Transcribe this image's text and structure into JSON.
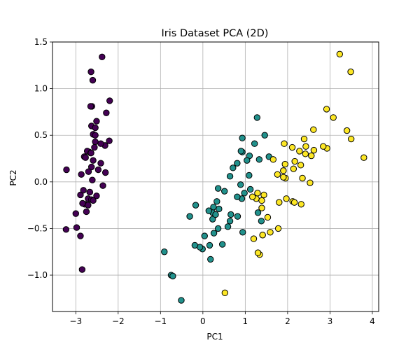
{
  "chart_data": {
    "type": "scatter",
    "title": "Iris Dataset PCA (2D)",
    "xlabel": "PC1",
    "ylabel": "PC2",
    "xlim": [
      -3.55,
      4.15
    ],
    "ylim": [
      -1.39,
      1.5
    ],
    "xticks": [
      -3,
      -2,
      -1,
      0,
      1,
      2,
      3,
      4
    ],
    "xtick_labels": [
      "−3",
      "−2",
      "−1",
      "0",
      "1",
      "2",
      "3",
      "4"
    ],
    "yticks": [
      -1.0,
      -0.5,
      0.0,
      0.5,
      1.0,
      1.5
    ],
    "ytick_labels": [
      "−1.0",
      "−0.5",
      "0.0",
      "0.5",
      "1.0",
      "1.5"
    ],
    "grid": true,
    "legend": false,
    "colors": [
      "#440154",
      "#21918c",
      "#fde725"
    ],
    "marker_edge_color": "#000000",
    "series": [
      {
        "points": [
          [
            -2.68,
            0.32
          ],
          [
            -2.71,
            -0.18
          ],
          [
            -2.89,
            -0.14
          ],
          [
            -2.75,
            -0.32
          ],
          [
            -2.73,
            0.33
          ],
          [
            -2.28,
            0.74
          ],
          [
            -2.82,
            -0.09
          ],
          [
            -2.63,
            0.16
          ],
          [
            -2.89,
            -0.58
          ],
          [
            -2.67,
            -0.11
          ],
          [
            -2.51,
            0.65
          ],
          [
            -2.61,
            0.02
          ],
          [
            -2.79,
            -0.24
          ],
          [
            -3.23,
            -0.51
          ],
          [
            -2.64,
            1.18
          ],
          [
            -2.38,
            1.34
          ],
          [
            -2.62,
            0.81
          ],
          [
            -2.65,
            0.31
          ],
          [
            -2.2,
            0.87
          ],
          [
            -2.59,
            0.51
          ],
          [
            -2.31,
            0.39
          ],
          [
            -2.54,
            0.43
          ],
          [
            -3.22,
            0.13
          ],
          [
            -2.3,
            0.1
          ],
          [
            -2.36,
            -0.04
          ],
          [
            -2.51,
            -0.15
          ],
          [
            -2.47,
            0.13
          ],
          [
            -2.56,
            0.37
          ],
          [
            -2.64,
            0.31
          ],
          [
            -2.63,
            -0.19
          ],
          [
            -2.59,
            -0.2
          ],
          [
            -2.41,
            0.41
          ],
          [
            -2.65,
            0.81
          ],
          [
            -2.6,
            1.09
          ],
          [
            -2.67,
            -0.11
          ],
          [
            -2.87,
            0.08
          ],
          [
            -2.63,
            0.6
          ],
          [
            -2.8,
            0.27
          ],
          [
            -2.98,
            -0.49
          ],
          [
            -2.59,
            0.23
          ],
          [
            -2.77,
            0.26
          ],
          [
            -2.85,
            -0.94
          ],
          [
            -3,
            -0.34
          ],
          [
            -2.41,
            0.2
          ],
          [
            -2.21,
            0.44
          ],
          [
            -2.71,
            -0.25
          ],
          [
            -2.54,
            0.5
          ],
          [
            -2.84,
            -0.23
          ],
          [
            -2.54,
            0.58
          ],
          [
            -2.7,
            0.11
          ]
        ]
      },
      {
        "points": [
          [
            1.28,
            0.69
          ],
          [
            0.93,
            0.32
          ],
          [
            1.46,
            0.5
          ],
          [
            0.18,
            -0.83
          ],
          [
            1.09,
            0.07
          ],
          [
            0.64,
            -0.42
          ],
          [
            1.1,
            0.28
          ],
          [
            -0.75,
            -1
          ],
          [
            1.04,
            0.23
          ],
          [
            -0.01,
            -0.72
          ],
          [
            -0.51,
            -1.27
          ],
          [
            0.51,
            -0.1
          ],
          [
            0.26,
            -0.55
          ],
          [
            0.98,
            -0.12
          ],
          [
            -0.17,
            -0.25
          ],
          [
            0.93,
            0.47
          ],
          [
            0.66,
            -0.35
          ],
          [
            0.23,
            -0.33
          ],
          [
            0.94,
            -0.54
          ],
          [
            0.04,
            -0.58
          ],
          [
            1.12,
            -0.08
          ],
          [
            0.36,
            -0.07
          ],
          [
            1.3,
            -0.33
          ],
          [
            0.92,
            -0.18
          ],
          [
            0.71,
            0.15
          ],
          [
            0.9,
            0.33
          ],
          [
            1.33,
            0.24
          ],
          [
            1.56,
            0.27
          ],
          [
            0.81,
            -0.16
          ],
          [
            -0.31,
            -0.37
          ],
          [
            -0.07,
            -0.7
          ],
          [
            -0.19,
            -0.68
          ],
          [
            0.14,
            -0.31
          ],
          [
            1.38,
            -0.42
          ],
          [
            0.59,
            -0.48
          ],
          [
            0.81,
            0.2
          ],
          [
            1.22,
            0.41
          ],
          [
            0.82,
            -0.37
          ],
          [
            0.25,
            -0.27
          ],
          [
            0.16,
            -0.68
          ],
          [
            0.46,
            -0.67
          ],
          [
            0.89,
            -0.03
          ],
          [
            0.23,
            -0.4
          ],
          [
            -0.71,
            -1.01
          ],
          [
            0.36,
            -0.5
          ],
          [
            0.33,
            -0.21
          ],
          [
            0.38,
            -0.29
          ],
          [
            0.64,
            0.06
          ],
          [
            -0.91,
            -0.75
          ],
          [
            0.3,
            -0.35
          ]
        ]
      },
      {
        "points": [
          [
            2.53,
            -0.01
          ],
          [
            1.41,
            -0.57
          ],
          [
            2.62,
            0.34
          ],
          [
            1.97,
            -0.18
          ],
          [
            2.35,
            0.04
          ],
          [
            3.4,
            0.55
          ],
          [
            0.52,
            -1.19
          ],
          [
            2.93,
            0.36
          ],
          [
            2.32,
            -0.24
          ],
          [
            2.92,
            0.78
          ],
          [
            1.66,
            0.24
          ],
          [
            1.8,
            -0.22
          ],
          [
            2.17,
            0.22
          ],
          [
            1.34,
            -0.78
          ],
          [
            1.59,
            -0.54
          ],
          [
            1.9,
            0.12
          ],
          [
            1.95,
            0.04
          ],
          [
            3.49,
            1.18
          ],
          [
            3.8,
            0.26
          ],
          [
            1.3,
            -0.76
          ],
          [
            2.43,
            0.38
          ],
          [
            1.2,
            -0.61
          ],
          [
            3.5,
            0.46
          ],
          [
            1.39,
            -0.2
          ],
          [
            2.28,
            0.33
          ],
          [
            2.61,
            0.56
          ],
          [
            1.26,
            -0.18
          ],
          [
            1.29,
            -0.12
          ],
          [
            2.12,
            -0.21
          ],
          [
            2.39,
            0.46
          ],
          [
            2.84,
            0.38
          ],
          [
            3.23,
            1.37
          ],
          [
            2.16,
            -0.22
          ],
          [
            1.44,
            -0.14
          ],
          [
            1.78,
            -0.5
          ],
          [
            3.08,
            0.69
          ],
          [
            2.14,
            0.14
          ],
          [
            1.9,
            0.05
          ],
          [
            1.17,
            -0.16
          ],
          [
            2.11,
            0.37
          ],
          [
            2.31,
            0.18
          ],
          [
            1.92,
            0.41
          ],
          [
            1.41,
            -0.57
          ],
          [
            2.56,
            0.28
          ],
          [
            2.42,
            0.3
          ],
          [
            1.94,
            0.19
          ],
          [
            1.53,
            -0.38
          ],
          [
            1.76,
            0.08
          ],
          [
            1.9,
            0.12
          ],
          [
            1.39,
            -0.28
          ]
        ]
      }
    ]
  }
}
